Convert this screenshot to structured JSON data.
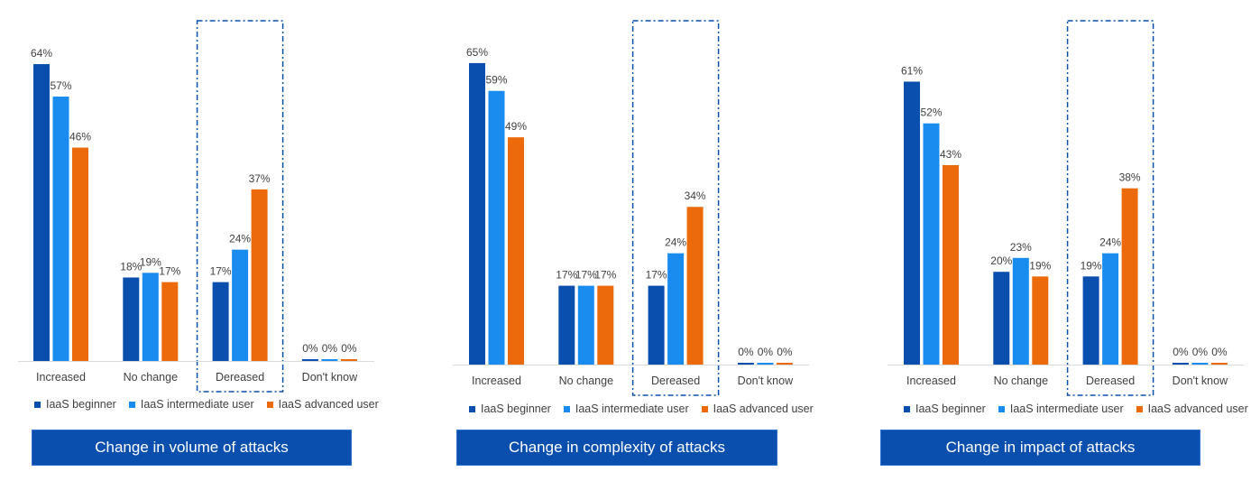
{
  "colors": {
    "beginner": "#0a4fad",
    "intermediate": "#1a8cf0",
    "advanced": "#ec6a0c",
    "title_bg": "#0a4fad",
    "highlight": "#0a4fad"
  },
  "chart_data": [
    {
      "type": "bar",
      "title": "Change in volume of attacks",
      "categories": [
        "Increased",
        "No change",
        "Dereased",
        "Don't know"
      ],
      "series": [
        {
          "name": "IaaS beginner",
          "values": [
            64,
            18,
            17,
            0
          ]
        },
        {
          "name": "IaaS intermediate user",
          "values": [
            57,
            19,
            24,
            0
          ]
        },
        {
          "name": "IaaS advanced user",
          "values": [
            46,
            17,
            37,
            0
          ]
        }
      ],
      "value_labels": [
        [
          "64%",
          "18%",
          "17%",
          "0%"
        ],
        [
          "57%",
          "19%",
          "24%",
          "0%"
        ],
        [
          "46%",
          "17%",
          "37%",
          "0%"
        ]
      ],
      "highlighted_category": "Dereased",
      "legend": "bottom",
      "grid": false
    },
    {
      "type": "bar",
      "title": "Change in complexity of attacks",
      "categories": [
        "Increased",
        "No change",
        "Dereased",
        "Don't know"
      ],
      "series": [
        {
          "name": "IaaS beginner",
          "values": [
            65,
            17,
            17,
            0
          ]
        },
        {
          "name": "IaaS intermediate user",
          "values": [
            59,
            17,
            24,
            0
          ]
        },
        {
          "name": "IaaS advanced user",
          "values": [
            49,
            17,
            34,
            0
          ]
        }
      ],
      "value_labels": [
        [
          "65%",
          "17%",
          "17%",
          "0%"
        ],
        [
          "59%",
          "17%",
          "24%",
          "0%"
        ],
        [
          "49%",
          "17%",
          "34%",
          "0%"
        ]
      ],
      "highlighted_category": "Dereased",
      "legend": "bottom",
      "grid": false
    },
    {
      "type": "bar",
      "title": "Change in impact of attacks",
      "categories": [
        "Increased",
        "No change",
        "Dereased",
        "Don't know"
      ],
      "series": [
        {
          "name": "IaaS beginner",
          "values": [
            61,
            20,
            19,
            0
          ]
        },
        {
          "name": "IaaS intermediate user",
          "values": [
            52,
            23,
            24,
            0
          ]
        },
        {
          "name": "IaaS advanced user",
          "values": [
            43,
            19,
            38,
            0
          ]
        }
      ],
      "value_labels": [
        [
          "61%",
          "20%",
          "19%",
          "0%"
        ],
        [
          "52%",
          "23%",
          "24%",
          "0%"
        ],
        [
          "43%",
          "19%",
          "38%",
          "0%"
        ]
      ],
      "highlighted_category": "Dereased",
      "legend": "bottom",
      "grid": false
    }
  ]
}
